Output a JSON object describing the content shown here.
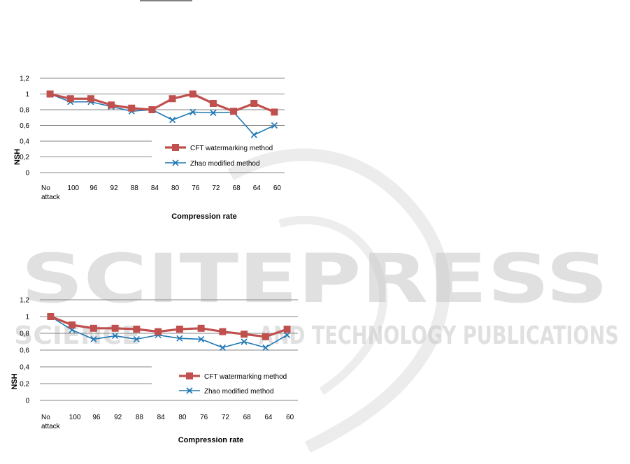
{
  "watermark": {
    "main": "SCITEPRESS",
    "sub_left": "SCIENCE",
    "sub_right": "AND TECHNOLOGY PUBLICATIONS"
  },
  "colors": {
    "cft": "#c0504d",
    "zhao": "#1f77b4",
    "grid": "#868686"
  },
  "chart_data": [
    {
      "type": "line",
      "categories": [
        "No\nattack",
        "100",
        "96",
        "92",
        "88",
        "84",
        "80",
        "76",
        "72",
        "68",
        "64",
        "60"
      ],
      "series": [
        {
          "name": "CFT watermarking method",
          "values": [
            1.0,
            0.94,
            0.94,
            0.86,
            0.82,
            0.8,
            0.94,
            1.0,
            0.88,
            0.78,
            0.88,
            0.77
          ]
        },
        {
          "name": "Zhao modified method",
          "values": [
            1.0,
            0.9,
            0.9,
            0.84,
            0.78,
            0.8,
            0.67,
            0.77,
            0.76,
            0.77,
            0.48,
            0.6
          ]
        }
      ],
      "ylabel": "NSH",
      "xlabel": "Compression rate",
      "ylim": [
        0,
        1.2
      ],
      "yticks": [
        "0",
        "0,2",
        "0,4",
        "0,6",
        "0,8",
        "1",
        "1,2"
      ],
      "grid": true,
      "legend": "bottom-right"
    },
    {
      "type": "line",
      "categories": [
        "No\nattack",
        "100",
        "96",
        "92",
        "88",
        "84",
        "80",
        "76",
        "72",
        "68",
        "64",
        "60"
      ],
      "series": [
        {
          "name": "CFT watermarking method",
          "values": [
            1.0,
            0.9,
            0.86,
            0.86,
            0.85,
            0.82,
            0.85,
            0.86,
            0.82,
            0.79,
            0.76,
            0.85
          ]
        },
        {
          "name": "Zhao modified method",
          "values": [
            1.0,
            0.84,
            0.73,
            0.77,
            0.73,
            0.78,
            0.74,
            0.73,
            0.63,
            0.7,
            0.63,
            0.78
          ]
        }
      ],
      "ylabel": "NSH",
      "xlabel": "Compression rate",
      "ylim": [
        0,
        1.2
      ],
      "yticks": [
        "0",
        "0,2",
        "0,4",
        "0,6",
        "0,8",
        "1",
        "1,2"
      ],
      "grid": true,
      "legend": "bottom-right"
    }
  ]
}
